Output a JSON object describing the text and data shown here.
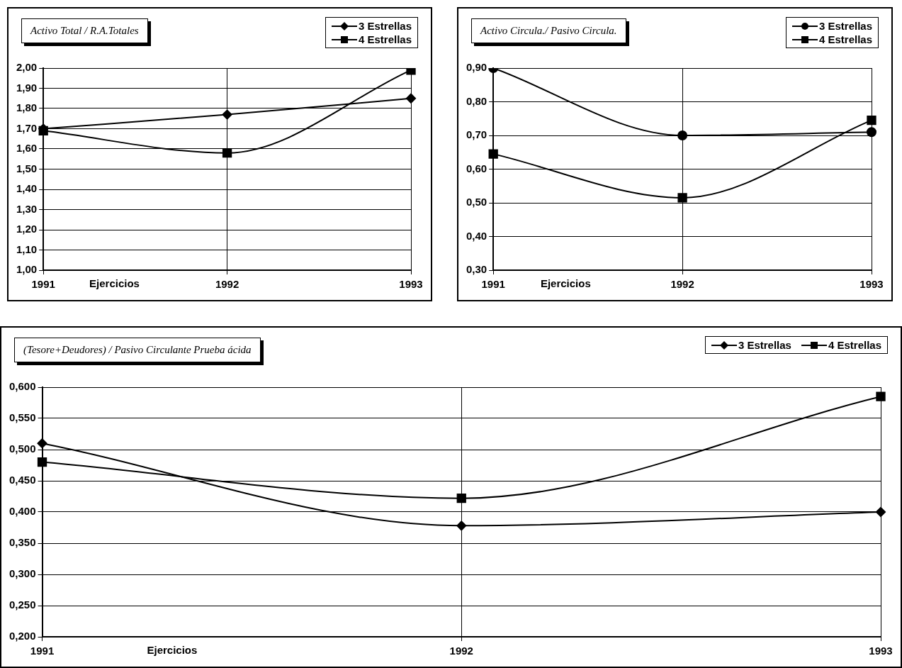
{
  "chart_data": [
    {
      "type": "line",
      "title": "Activo Total / R.A.Totales",
      "xlabel": "Ejercicios",
      "categories": [
        "1991",
        "1992",
        "1993"
      ],
      "series": [
        {
          "name": "3 Estrellas",
          "color": "#000000",
          "marker": "diamond",
          "values": [
            1.7,
            1.77,
            1.85
          ]
        },
        {
          "name": "4 Estrellas",
          "color": "#000000",
          "marker": "square",
          "values": [
            1.69,
            1.58,
            1.99
          ]
        }
      ],
      "ylim": [
        1.0,
        2.0
      ],
      "yticks": [
        {
          "value": 1.0,
          "label": "1,00"
        },
        {
          "value": 1.1,
          "label": "1,10"
        },
        {
          "value": 1.2,
          "label": "1,20"
        },
        {
          "value": 1.3,
          "label": "1,30"
        },
        {
          "value": 1.4,
          "label": "1,40"
        },
        {
          "value": 1.5,
          "label": "1,50"
        },
        {
          "value": 1.6,
          "label": "1,60"
        },
        {
          "value": 1.7,
          "label": "1,70"
        },
        {
          "value": 1.8,
          "label": "1,80"
        },
        {
          "value": 1.9,
          "label": "1,90"
        },
        {
          "value": 2.0,
          "label": "2,00"
        }
      ],
      "grid": true,
      "legend": "top right"
    },
    {
      "type": "line",
      "title": "Activo Circula./ Pasivo Circula.",
      "xlabel": "Ejercicios",
      "categories": [
        "1991",
        "1992",
        "1993"
      ],
      "series": [
        {
          "name": "3 Estrellas",
          "color": "#000000",
          "marker": "circle",
          "values": [
            0.9,
            0.7,
            0.71
          ]
        },
        {
          "name": "4 Estrellas",
          "color": "#000000",
          "marker": "square",
          "values": [
            0.645,
            0.515,
            0.745
          ]
        }
      ],
      "ylim": [
        0.3,
        0.9
      ],
      "yticks": [
        {
          "value": 0.3,
          "label": "0,30"
        },
        {
          "value": 0.4,
          "label": "0,40"
        },
        {
          "value": 0.5,
          "label": "0,50"
        },
        {
          "value": 0.6,
          "label": "0,60"
        },
        {
          "value": 0.7,
          "label": "0,70"
        },
        {
          "value": 0.8,
          "label": "0,80"
        },
        {
          "value": 0.9,
          "label": "0,90"
        }
      ],
      "grid": true,
      "legend": "top right"
    },
    {
      "type": "line",
      "title": "(Tesore+Deudores) / Pasivo Circulante  Prueba ácida",
      "xlabel": "Ejercicios",
      "categories": [
        "1991",
        "1992",
        "1993"
      ],
      "series": [
        {
          "name": "3 Estrellas",
          "color": "#000000",
          "marker": "diamond",
          "values": [
            0.51,
            0.378,
            0.4
          ]
        },
        {
          "name": "4 Estrellas",
          "color": "#000000",
          "marker": "square",
          "values": [
            0.48,
            0.422,
            0.585
          ]
        }
      ],
      "ylim": [
        0.2,
        0.6
      ],
      "yticks": [
        {
          "value": 0.2,
          "label": "0,200"
        },
        {
          "value": 0.25,
          "label": "0,250"
        },
        {
          "value": 0.3,
          "label": "0,300"
        },
        {
          "value": 0.35,
          "label": "0,350"
        },
        {
          "value": 0.4,
          "label": "0,400"
        },
        {
          "value": 0.45,
          "label": "0,450"
        },
        {
          "value": 0.5,
          "label": "0,500"
        },
        {
          "value": 0.55,
          "label": "0,550"
        },
        {
          "value": 0.6,
          "label": "0,600"
        }
      ],
      "grid": true,
      "legend": "top right"
    }
  ]
}
